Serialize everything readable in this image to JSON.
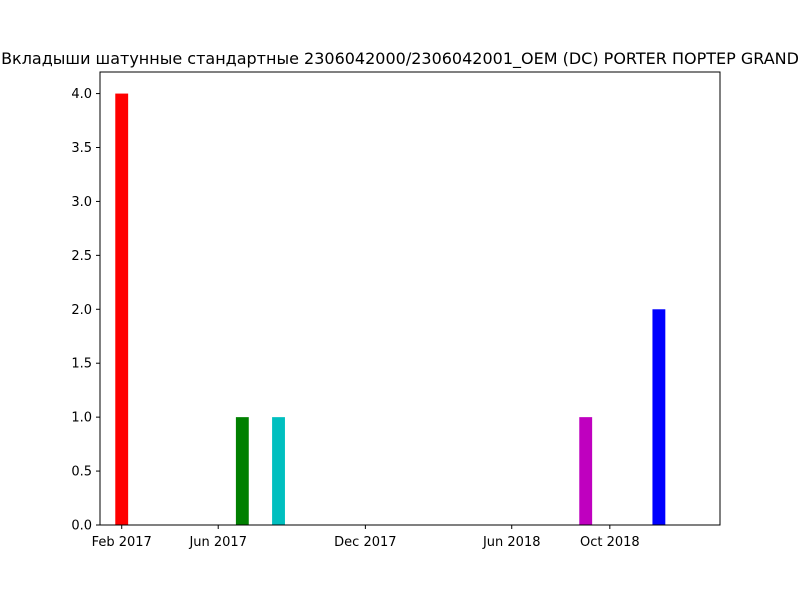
{
  "chart_data": {
    "type": "bar",
    "title": "Вкладыши шатунные стандартные 2306042000/2306042001_OEM (DC) PORTER ПОРТЕР GRAND",
    "xlabel": "",
    "ylabel": "",
    "x_axis_type": "date",
    "xlim": [
      "2017-01-05",
      "2019-02-15"
    ],
    "ylim": [
      0,
      4.2
    ],
    "x_ticks": [
      {
        "date": "2017-02-01",
        "label": "Feb 2017"
      },
      {
        "date": "2017-06-01",
        "label": "Jun 2017"
      },
      {
        "date": "2017-12-01",
        "label": "Dec 2017"
      },
      {
        "date": "2018-06-01",
        "label": "Jun 2018"
      },
      {
        "date": "2018-10-01",
        "label": "Oct 2018"
      }
    ],
    "y_ticks": [
      {
        "value": 0.0,
        "label": "0.0"
      },
      {
        "value": 0.5,
        "label": "0.5"
      },
      {
        "value": 1.0,
        "label": "1.0"
      },
      {
        "value": 1.5,
        "label": "1.5"
      },
      {
        "value": 2.0,
        "label": "2.0"
      },
      {
        "value": 2.5,
        "label": "2.5"
      },
      {
        "value": 3.0,
        "label": "3.0"
      },
      {
        "value": 3.5,
        "label": "3.5"
      },
      {
        "value": 4.0,
        "label": "4.0"
      }
    ],
    "bars": [
      {
        "date": "2017-02-01",
        "value": 4,
        "color": "#ff0000"
      },
      {
        "date": "2017-07-01",
        "value": 1,
        "color": "#008000"
      },
      {
        "date": "2017-08-15",
        "value": 1,
        "color": "#00bfbf"
      },
      {
        "date": "2018-09-01",
        "value": 1,
        "color": "#bf00bf"
      },
      {
        "date": "2018-12-01",
        "value": 2,
        "color": "#0000ff"
      }
    ],
    "bar_width_days": 16,
    "grid": false,
    "legend": "none"
  }
}
